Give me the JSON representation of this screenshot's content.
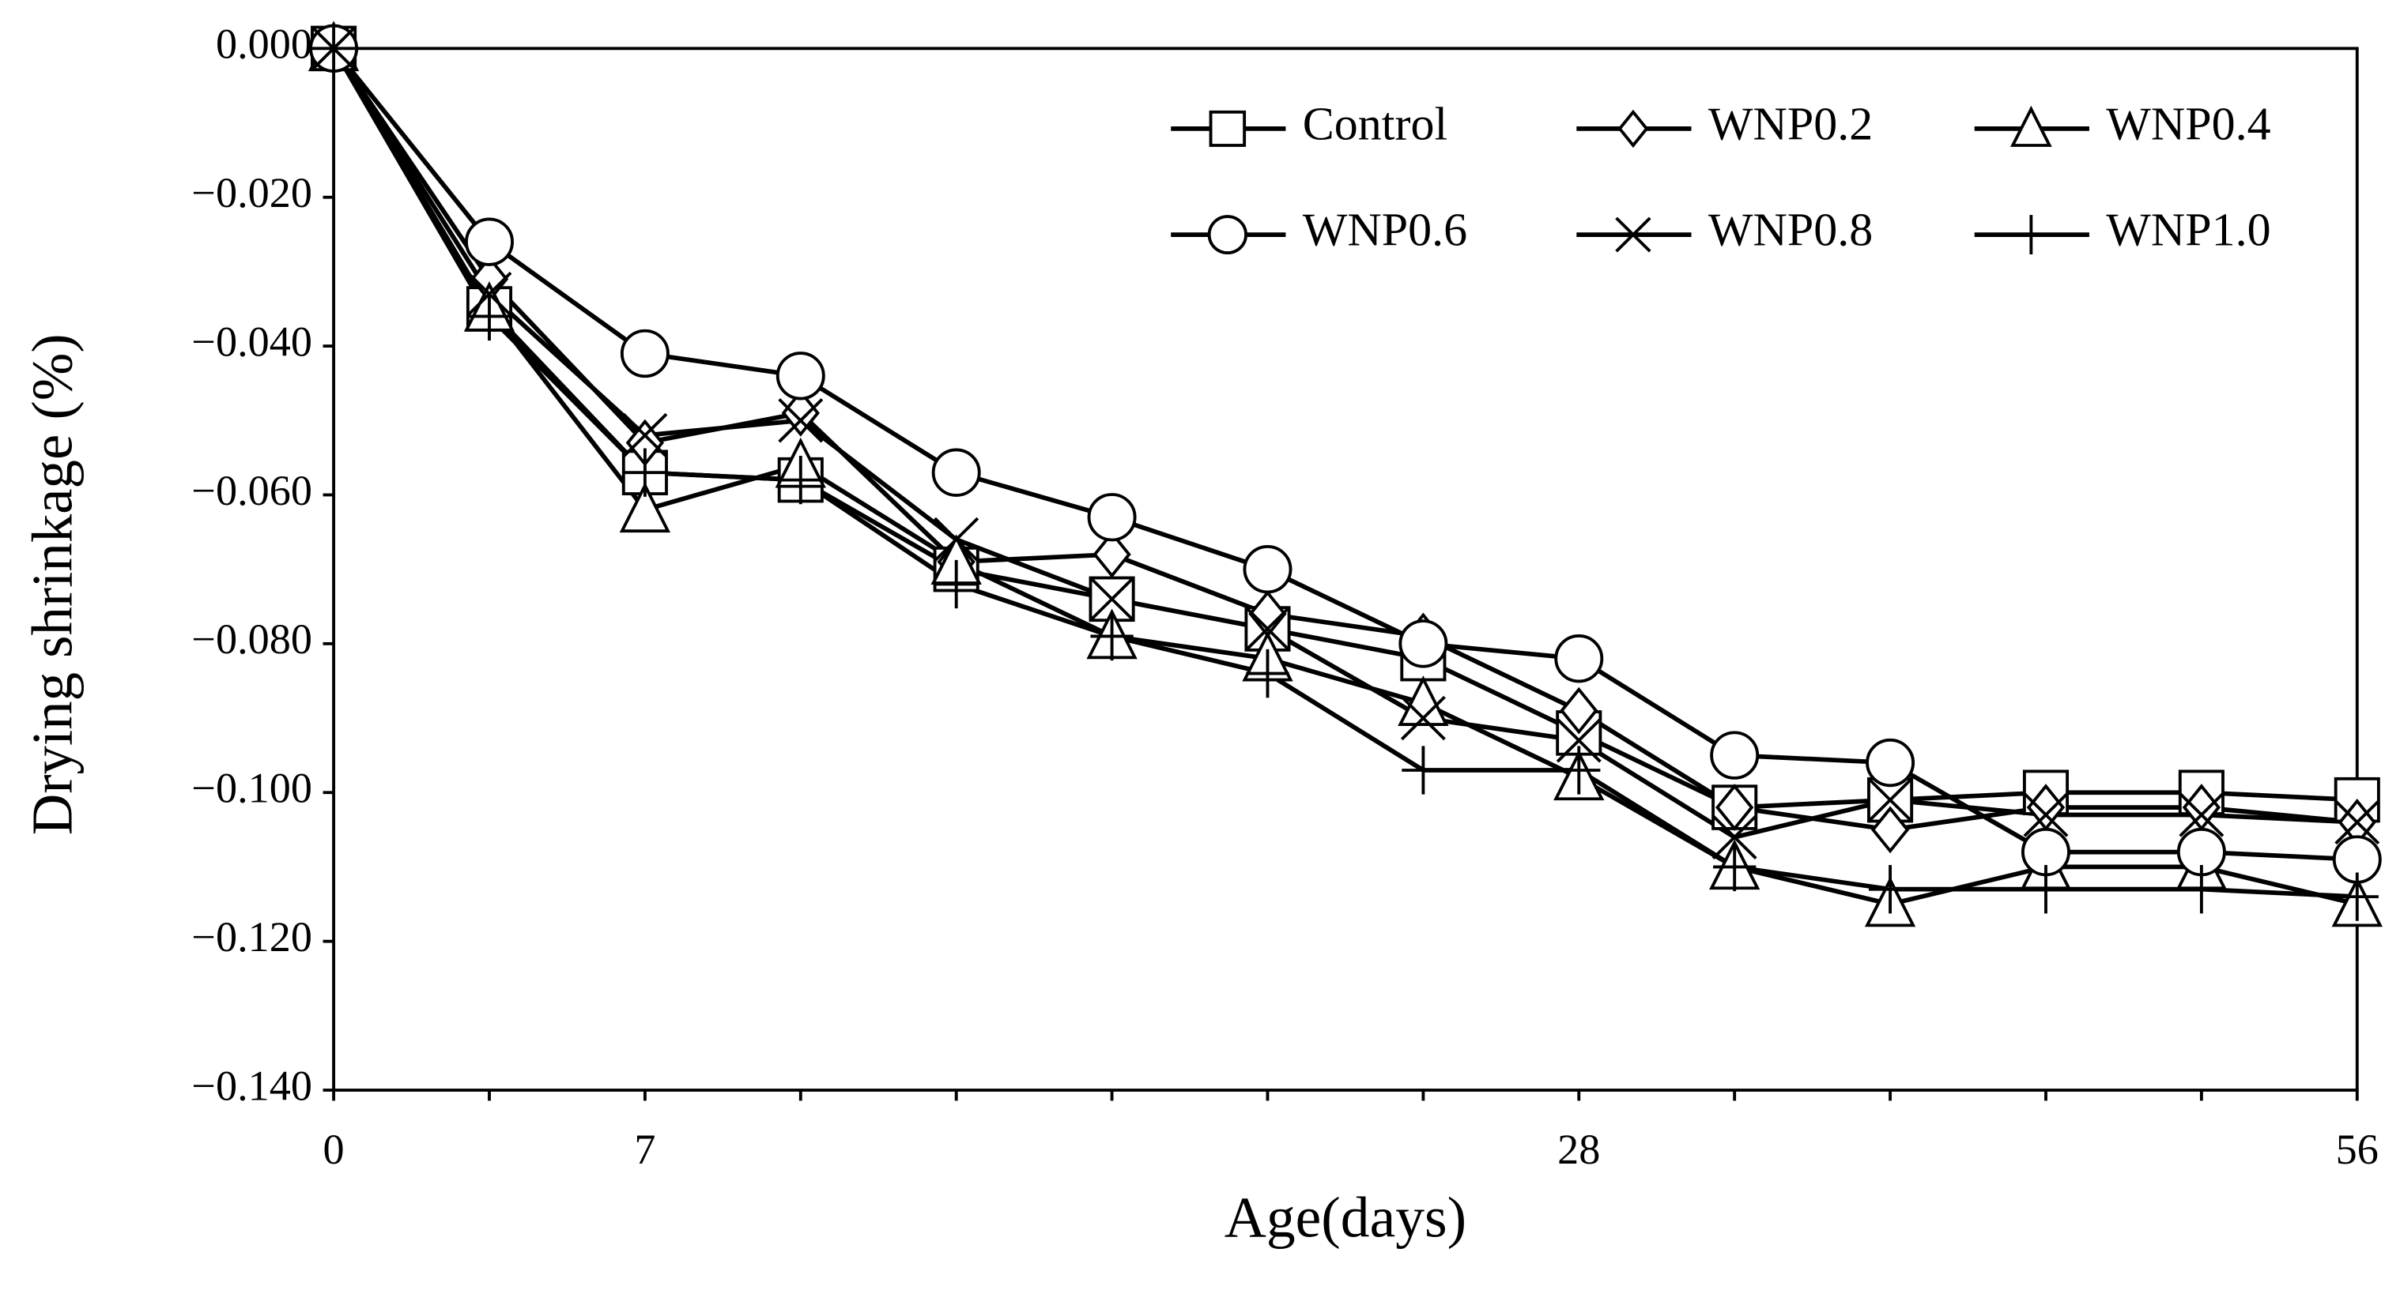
{
  "chart_data": {
    "type": "line",
    "xlabel": "Age(days)",
    "ylabel": "Drying shrinkage (%)",
    "categories": [
      "0",
      null,
      "7",
      null,
      null,
      null,
      null,
      null,
      "28",
      null,
      null,
      null,
      null,
      "56"
    ],
    "ylim": [
      -0.14,
      0
    ],
    "yticks": [
      {
        "value": 0,
        "label": "0.000"
      },
      {
        "value": -0.02,
        "label": "−0.020"
      },
      {
        "value": -0.04,
        "label": "−0.040"
      },
      {
        "value": -0.06,
        "label": "−0.060"
      },
      {
        "value": -0.08,
        "label": "−0.080"
      },
      {
        "value": -0.1,
        "label": "−0.100"
      },
      {
        "value": -0.12,
        "label": "−0.120"
      },
      {
        "value": -0.14,
        "label": "−0.140"
      }
    ],
    "grid": false,
    "legend": "upper right",
    "series": [
      {
        "name": "Control",
        "color": "#000000",
        "marker": "square",
        "values": [
          0,
          -0.035,
          -0.057,
          -0.058,
          -0.07,
          -0.074,
          -0.078,
          -0.082,
          -0.092,
          -0.102,
          -0.101,
          -0.1,
          -0.1,
          -0.101
        ]
      },
      {
        "name": "WNP0.2",
        "color": "#000000",
        "marker": "diamond",
        "values": [
          0,
          -0.031,
          -0.053,
          -0.049,
          -0.069,
          -0.068,
          -0.076,
          -0.079,
          -0.089,
          -0.102,
          -0.105,
          -0.102,
          -0.102,
          -0.104
        ]
      },
      {
        "name": "WNP0.4",
        "color": "#000000",
        "marker": "triangle",
        "values": [
          0,
          -0.035,
          -0.062,
          -0.056,
          -0.069,
          -0.079,
          -0.082,
          -0.088,
          -0.098,
          -0.11,
          -0.115,
          -0.11,
          -0.11,
          -0.115
        ]
      },
      {
        "name": "WNP0.6",
        "color": "#000000",
        "marker": "circle",
        "values": [
          0,
          -0.026,
          -0.041,
          -0.044,
          -0.057,
          -0.063,
          -0.07,
          -0.08,
          -0.082,
          -0.095,
          -0.096,
          -0.108,
          -0.108,
          -0.109
        ]
      },
      {
        "name": "WNP0.8",
        "color": "#000000",
        "marker": "x",
        "values": [
          0,
          -0.033,
          -0.052,
          -0.05,
          -0.066,
          -0.074,
          -0.078,
          -0.09,
          -0.093,
          -0.106,
          -0.101,
          -0.103,
          -0.103,
          -0.104
        ]
      },
      {
        "name": "WNP1.0",
        "color": "#000000",
        "marker": "plus",
        "values": [
          0,
          -0.036,
          -0.057,
          -0.058,
          -0.072,
          -0.079,
          -0.084,
          -0.097,
          -0.097,
          -0.11,
          -0.113,
          -0.113,
          -0.113,
          -0.114
        ]
      }
    ]
  }
}
